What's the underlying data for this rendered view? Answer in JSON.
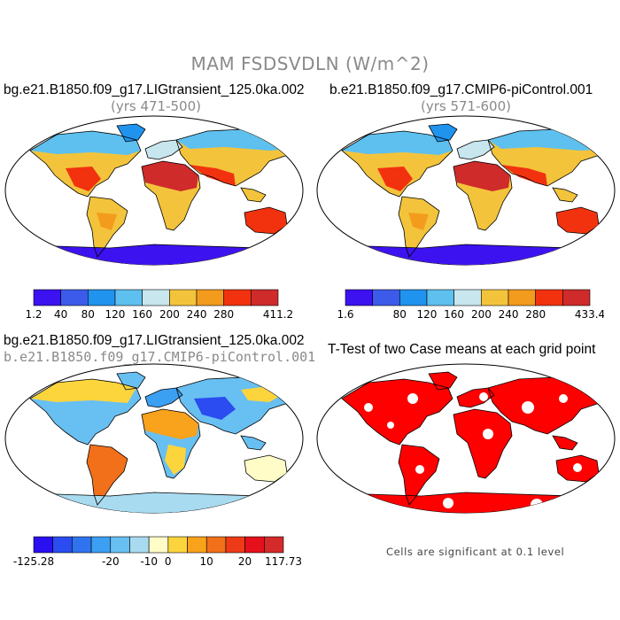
{
  "main_title": "MAM FSDSVDLN (W/m^2)",
  "panels": [
    {
      "title": "bg.e21.B1850.f09_g17.LIGtransient_125.0ka.002",
      "subtitle": "(yrs 471-500)",
      "colorbar": {
        "colors": [
          "#3d12f0",
          "#3c5bea",
          "#1f93ee",
          "#5ec0ef",
          "#c7e6ee",
          "#f3c43b",
          "#f39b1d",
          "#f2320f",
          "#cf2b2b"
        ],
        "labels": [
          "1.2",
          "40",
          "80",
          "120",
          "160",
          "200",
          "240",
          "280",
          "411.2"
        ]
      }
    },
    {
      "title": "b.e21.B1850.f09_g17.CMIP6-piControl.001",
      "subtitle": "(yrs 571-600)",
      "colorbar": {
        "colors": [
          "#3d12f0",
          "#3c5bea",
          "#1f93ee",
          "#5ec0ef",
          "#c7e6ee",
          "#f3c43b",
          "#f39b1d",
          "#f2320f",
          "#cf2b2b"
        ],
        "labels": [
          "1.6",
          "80",
          "120",
          "160",
          "200",
          "240",
          "280",
          "433.4"
        ]
      }
    },
    {
      "title": "bg.e21.B1850.f09_g17.LIGtransient_125.0ka.002",
      "subtitle": "b.e21.B1850.f09_g17.CMIP6-piControl.001",
      "colorbar": {
        "colors": [
          "#2a0ff0",
          "#2a4cf0",
          "#2f74ee",
          "#3b9ff2",
          "#68bff2",
          "#a9dbf0",
          "#fffcc8",
          "#fcd53d",
          "#f9a21b",
          "#f2701a",
          "#ed3a17",
          "#e5101b",
          "#d42a2a"
        ],
        "labels": [
          "-125.28",
          "-20",
          "-10",
          "0",
          "10",
          "20",
          "117.73"
        ]
      }
    },
    {
      "title": "T-Test of two Case means at each grid point",
      "note": "Cells are significant at 0.1 level"
    }
  ]
}
